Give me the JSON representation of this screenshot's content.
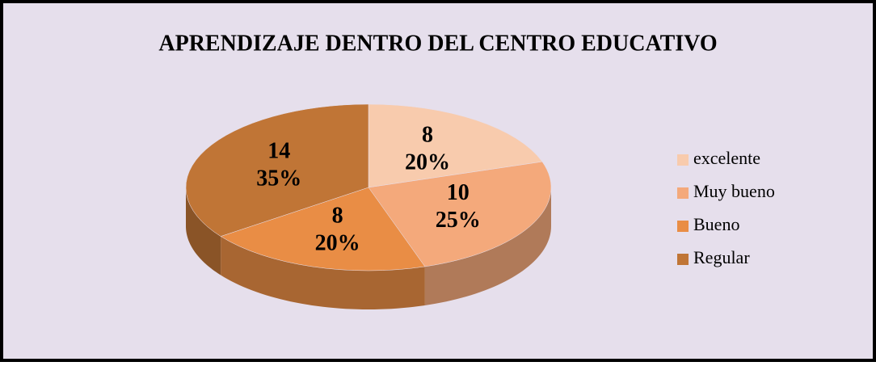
{
  "chart_data": {
    "type": "pie",
    "title": "APRENDIZAJE DENTRO DEL CENTRO EDUCATIVO",
    "categories": [
      "excelente",
      "Muy bueno",
      "Bueno",
      "Regular"
    ],
    "values": [
      8,
      10,
      8,
      14
    ],
    "percentages": [
      20,
      25,
      20,
      35
    ],
    "percentage_labels": [
      "20%",
      "25%",
      "20%",
      "35%"
    ],
    "colors": [
      "#f8cbad",
      "#f4a97b",
      "#e98d45",
      "#c07536"
    ],
    "legend": "right"
  }
}
